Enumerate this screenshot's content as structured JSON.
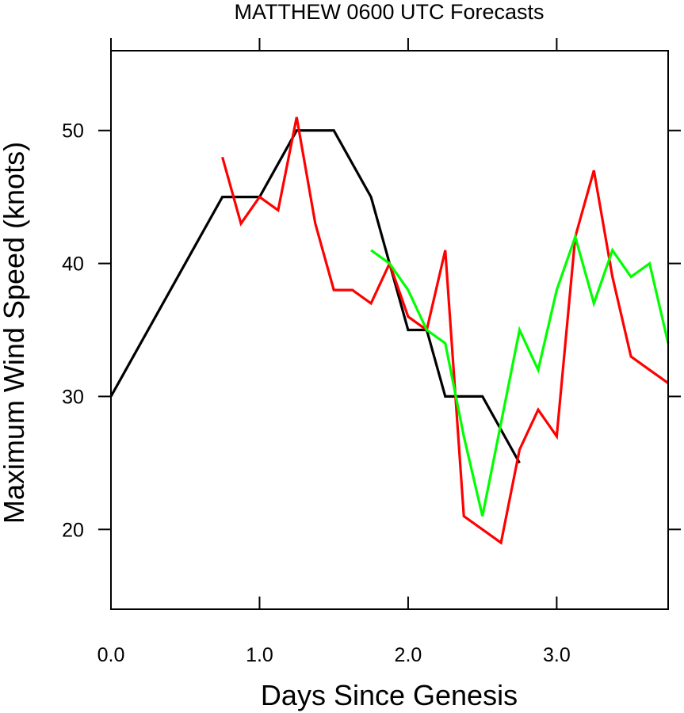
{
  "chart_data": {
    "type": "line",
    "title": "MATTHEW 0600 UTC Forecasts",
    "xlabel": "Days Since Genesis",
    "ylabel": "Maximum Wind Speed (knots)",
    "xlim": [
      0,
      3.75
    ],
    "ylim": [
      14,
      56
    ],
    "x_ticks": [
      {
        "value": 0,
        "label": "0.0"
      },
      {
        "value": 1,
        "label": "1.0"
      },
      {
        "value": 2,
        "label": "2.0"
      },
      {
        "value": 3,
        "label": "3.0"
      }
    ],
    "y_ticks": [
      {
        "value": 20,
        "label": "20"
      },
      {
        "value": 30,
        "label": "30"
      },
      {
        "value": 40,
        "label": "40"
      },
      {
        "value": 50,
        "label": "50"
      }
    ],
    "grid": false,
    "legend": "none",
    "series": [
      {
        "color": "#000000",
        "x": [
          0,
          0.75,
          1.0,
          1.25,
          1.5,
          1.75,
          2.0,
          2.125,
          2.25,
          2.5,
          2.75
        ],
        "y": [
          30,
          45,
          45,
          50,
          50,
          45,
          35,
          35,
          30,
          30,
          25
        ]
      },
      {
        "color": "#ff0000",
        "x": [
          0.75,
          0.875,
          1.0,
          1.125,
          1.25,
          1.375,
          1.5,
          1.625,
          1.75,
          1.875,
          2.0,
          2.125,
          2.25,
          2.375,
          2.5,
          2.625,
          2.75,
          2.875,
          3.0,
          3.125,
          3.25,
          3.375,
          3.5,
          3.625,
          3.75
        ],
        "y": [
          48,
          43,
          45,
          44,
          51,
          43,
          38,
          38,
          37,
          40,
          36,
          35,
          41,
          21,
          20,
          19,
          26,
          29,
          27,
          42,
          47,
          39,
          33,
          32,
          31
        ]
      },
      {
        "color": "#00ff00",
        "x": [
          1.75,
          1.875,
          2.0,
          2.125,
          2.25,
          2.375,
          2.5,
          2.625,
          2.75,
          2.875,
          3.0,
          3.125,
          3.25,
          3.375,
          3.5,
          3.625,
          3.75
        ],
        "y": [
          41,
          40,
          38,
          35,
          34,
          27,
          21,
          28,
          35,
          32,
          38,
          42,
          37,
          41,
          39,
          40,
          34
        ]
      }
    ]
  }
}
